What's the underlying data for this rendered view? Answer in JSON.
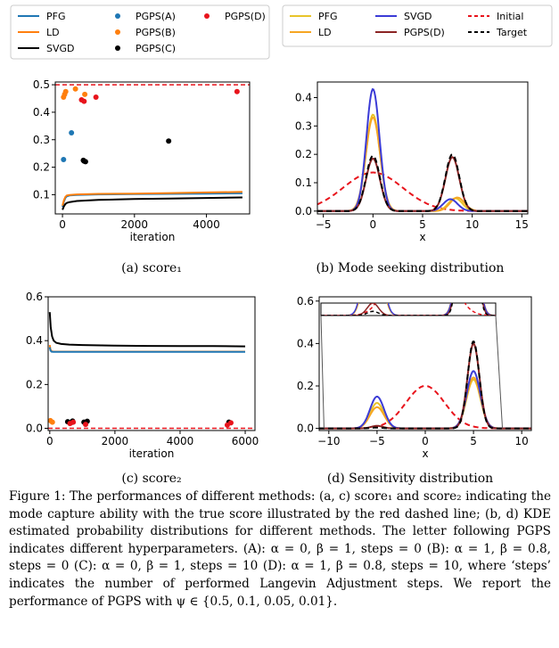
{
  "legend_a": [
    {
      "label": "PFG",
      "kind": "line",
      "color": "#1f77b4"
    },
    {
      "label": "LD",
      "kind": "line",
      "color": "#ff7f0e"
    },
    {
      "label": "SVGD",
      "kind": "line",
      "color": "#000000"
    },
    {
      "label": "PGPS(A)",
      "kind": "dot",
      "color": "#1f77b4"
    },
    {
      "label": "PGPS(B)",
      "kind": "dot",
      "color": "#ff7f0e"
    },
    {
      "label": "PGPS(C)",
      "kind": "dot",
      "color": "#000000"
    },
    {
      "label": "PGPS(D)",
      "kind": "dot",
      "color": "#e8141c"
    }
  ],
  "legend_b": [
    {
      "label": "PFG",
      "kind": "line",
      "color": "#e8c42a"
    },
    {
      "label": "LD",
      "kind": "line",
      "color": "#f6a623"
    },
    {
      "label": "SVGD",
      "kind": "line",
      "color": "#3b3bd6"
    },
    {
      "label": "PGPS(D)",
      "kind": "line",
      "color": "#8b2424"
    },
    {
      "label": "Initial",
      "kind": "dash",
      "color": "#e8141c"
    },
    {
      "label": "Target",
      "kind": "dash",
      "color": "#000000"
    }
  ],
  "subcaptions": {
    "a": "(a) score₁",
    "b": "(b) Mode seeking distribution",
    "c": "(c) score₂",
    "d": "(d) Sensitivity distribution"
  },
  "caption": "Figure 1: The performances of different methods: (a, c) score₁ and score₂ indicating the mode capture ability with the true score illustrated by the red dashed line; (b, d) KDE estimated probability distributions for different methods. The letter following PGPS indicates different hyperparameters. (A): α = 0, β = 1, steps = 0 (B): α = 1, β = 0.8, steps = 0 (C): α = 0, β = 1, steps = 10 (D): α = 1, β = 0.8, steps = 10, where ‘steps’ indicates the number of performed Langevin Adjustment steps. We report the performance of PGPS with ψ ∈ {0.5, 0.1, 0.05, 0.01}.",
  "chart_data": [
    {
      "type": "line",
      "id": "a",
      "title": "",
      "xlabel": "iteration",
      "ylabel": "",
      "xlim": [
        -200,
        5200
      ],
      "ylim": [
        0.03,
        0.51
      ],
      "xticks": [
        0,
        2000,
        4000
      ],
      "yticks": [
        0.1,
        0.2,
        0.3,
        0.4,
        0.5
      ],
      "ytick_labels": [
        "0.1",
        "0.2",
        "0.3",
        "0.4",
        "0.5"
      ],
      "true_score": 0.5,
      "series": [
        {
          "name": "PFG",
          "color": "#1f77b4",
          "x": [
            0,
            40,
            80,
            120,
            200,
            400,
            1000,
            2000,
            3000,
            4000,
            5000
          ],
          "y": [
            0.055,
            0.075,
            0.088,
            0.094,
            0.097,
            0.099,
            0.101,
            0.102,
            0.103,
            0.104,
            0.105
          ]
        },
        {
          "name": "LD",
          "color": "#ff7f0e",
          "x": [
            0,
            40,
            80,
            120,
            200,
            400,
            1000,
            2000,
            3000,
            4000,
            5000
          ],
          "y": [
            0.06,
            0.08,
            0.092,
            0.097,
            0.099,
            0.101,
            0.103,
            0.104,
            0.106,
            0.108,
            0.11
          ]
        },
        {
          "name": "SVGD",
          "color": "#000000",
          "x": [
            0,
            40,
            80,
            120,
            200,
            400,
            1000,
            2000,
            3000,
            4000,
            5000
          ],
          "y": [
            0.045,
            0.058,
            0.066,
            0.07,
            0.073,
            0.077,
            0.081,
            0.084,
            0.086,
            0.088,
            0.09
          ]
        }
      ],
      "points": [
        {
          "name": "PGPS(A)",
          "color": "#1f77b4",
          "x": [
            30,
            250
          ],
          "y": [
            0.228,
            0.325
          ]
        },
        {
          "name": "PGPS(B)",
          "color": "#ff7f0e",
          "x": [
            30,
            60,
            90,
            360,
            620
          ],
          "y": [
            0.455,
            0.465,
            0.475,
            0.485,
            0.465
          ]
        },
        {
          "name": "PGPS(C)",
          "color": "#000000",
          "x": [
            580,
            600,
            640,
            2950
          ],
          "y": [
            0.225,
            0.222,
            0.22,
            0.295
          ]
        },
        {
          "name": "PGPS(D)",
          "color": "#e8141c",
          "x": [
            530,
            600,
            930,
            4850
          ],
          "y": [
            0.445,
            0.44,
            0.455,
            0.475
          ]
        }
      ]
    },
    {
      "type": "line",
      "id": "b",
      "title": "",
      "xlabel": "x",
      "ylabel": "",
      "xlim": [
        -5.6,
        15.6
      ],
      "ylim": [
        -0.01,
        0.455
      ],
      "xticks": [
        -5,
        0,
        5,
        10,
        15
      ],
      "yticks": [
        0.0,
        0.1,
        0.2,
        0.3,
        0.4
      ],
      "ytick_labels": [
        "0.0",
        "0.1",
        "0.2",
        "0.3",
        "0.4"
      ],
      "series": [
        {
          "name": "Initial",
          "color": "#e8141c",
          "dash": true,
          "mix": [
            [
              0.136,
              0,
              3.0
            ]
          ]
        },
        {
          "name": "PFG",
          "color": "#e8c42a",
          "mix": [
            [
              0.34,
              0,
              0.7
            ],
            [
              0.045,
              8.3,
              0.7
            ]
          ]
        },
        {
          "name": "LD",
          "color": "#f6a623",
          "mix": [
            [
              0.33,
              0,
              0.72
            ],
            [
              0.048,
              8.5,
              0.72
            ]
          ]
        },
        {
          "name": "SVGD",
          "color": "#3b3bd6",
          "mix": [
            [
              0.43,
              0,
              0.66
            ],
            [
              0.042,
              7.8,
              0.72
            ]
          ]
        },
        {
          "name": "PGPS(D)",
          "color": "#8b2424",
          "mix": [
            [
              0.185,
              0,
              0.7
            ],
            [
              0.19,
              8,
              0.7
            ]
          ]
        },
        {
          "name": "Target",
          "color": "#000000",
          "dash": true,
          "mix": [
            [
              0.195,
              0,
              0.7
            ],
            [
              0.2,
              8,
              0.7
            ]
          ]
        }
      ]
    },
    {
      "type": "line",
      "id": "c",
      "title": "",
      "xlabel": "iteration",
      "ylabel": "",
      "xlim": [
        -50,
        6300
      ],
      "ylim": [
        -0.01,
        0.6
      ],
      "xticks": [
        0,
        2000,
        4000,
        6000
      ],
      "yticks": [
        0.0,
        0.2,
        0.4,
        0.6
      ],
      "ytick_labels": [
        "0.0",
        "0.2",
        "0.4",
        "0.6"
      ],
      "true_score": 0.0,
      "series": [
        {
          "name": "SVGD",
          "color": "#000000",
          "x": [
            0,
            30,
            70,
            120,
            200,
            350,
            600,
            1000,
            2000,
            3000,
            4000,
            5000,
            6000
          ],
          "y": [
            0.53,
            0.46,
            0.42,
            0.4,
            0.39,
            0.385,
            0.382,
            0.38,
            0.377,
            0.376,
            0.375,
            0.375,
            0.374
          ]
        },
        {
          "name": "LD",
          "color": "#ff7f0e",
          "x": [
            0,
            20,
            50,
            100,
            300,
            1000,
            3000,
            6000
          ],
          "y": [
            0.38,
            0.36,
            0.352,
            0.35,
            0.35,
            0.35,
            0.35,
            0.35
          ]
        },
        {
          "name": "PFG",
          "color": "#1f77b4",
          "x": [
            0,
            20,
            50,
            100,
            300,
            1000,
            3000,
            6000
          ],
          "y": [
            0.37,
            0.355,
            0.35,
            0.349,
            0.349,
            0.349,
            0.349,
            0.349
          ]
        }
      ],
      "points": [
        {
          "name": "PGPS(B)",
          "color": "#ff7f0e",
          "x": [
            20,
            80
          ],
          "y": [
            0.035,
            0.028
          ]
        },
        {
          "name": "PGPS(C)",
          "color": "#000000",
          "x": [
            550,
            650,
            700,
            1050,
            1150,
            5500
          ],
          "y": [
            0.03,
            0.025,
            0.033,
            0.028,
            0.032,
            0.028
          ]
        },
        {
          "name": "PGPS(D)",
          "color": "#e8141c",
          "x": [
            620,
            720,
            1100,
            5450,
            5560
          ],
          "y": [
            0.022,
            0.028,
            0.018,
            0.015,
            0.025
          ]
        }
      ]
    },
    {
      "type": "line",
      "id": "d",
      "title": "",
      "xlabel": "x",
      "ylabel": "",
      "xlim": [
        -11,
        11
      ],
      "ylim": [
        -0.01,
        0.62
      ],
      "xticks": [
        -10,
        -5,
        0,
        5,
        10
      ],
      "yticks": [
        0.0,
        0.2,
        0.4,
        0.6
      ],
      "ytick_labels": [
        "0.0",
        "0.2",
        "0.4",
        "0.6"
      ],
      "series": [
        {
          "name": "Initial",
          "color": "#e8141c",
          "dash": true,
          "mix": [
            [
              0.2,
              0,
              2.0
            ]
          ]
        },
        {
          "name": "PFG",
          "color": "#e8c42a",
          "mix": [
            [
              0.12,
              -5,
              0.72
            ],
            [
              0.23,
              5,
              0.72
            ]
          ]
        },
        {
          "name": "LD",
          "color": "#f6a623",
          "mix": [
            [
              0.1,
              -5,
              0.75
            ],
            [
              0.24,
              5,
              0.72
            ]
          ]
        },
        {
          "name": "SVGD",
          "color": "#3b3bd6",
          "mix": [
            [
              0.15,
              -5,
              0.72
            ],
            [
              0.27,
              5,
              0.7
            ]
          ]
        },
        {
          "name": "PGPS(D)",
          "color": "#8b2424",
          "mix": [
            [
              0.012,
              -5,
              0.6
            ],
            [
              0.4,
              5,
              0.62
            ]
          ]
        },
        {
          "name": "Target",
          "color": "#000000",
          "dash": true,
          "mix": [
            [
              0.004,
              -5,
              0.6
            ],
            [
              0.41,
              5,
              0.6
            ]
          ]
        }
      ]
    }
  ]
}
